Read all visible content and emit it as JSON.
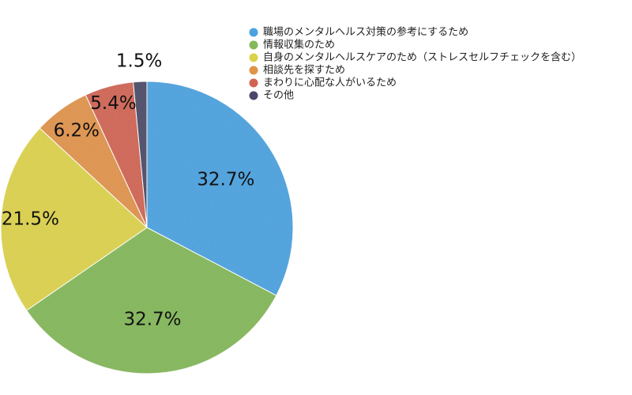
{
  "chart_data": {
    "type": "pie",
    "categories": [
      "職場のメンタルヘルス対策の参考にするため",
      "情報収集のため",
      "自身のメンタルヘルスケアのため（ストレスセルフチェックを含む）",
      "相談先を探すため",
      "まわりに心配な人がいるため",
      "その他"
    ],
    "values": [
      32.7,
      32.7,
      21.5,
      6.2,
      5.4,
      1.5
    ],
    "value_labels": [
      "32.7%",
      "32.7%",
      "21.5%",
      "6.2%",
      "5.4%",
      "1.5%"
    ],
    "colors": [
      "#4aa3df",
      "#84b858",
      "#dcd14a",
      "#e0944a",
      "#d06552",
      "#4a4868"
    ],
    "start_angle_deg": 0,
    "direction": "clockwise",
    "legend_position": "top-right"
  }
}
